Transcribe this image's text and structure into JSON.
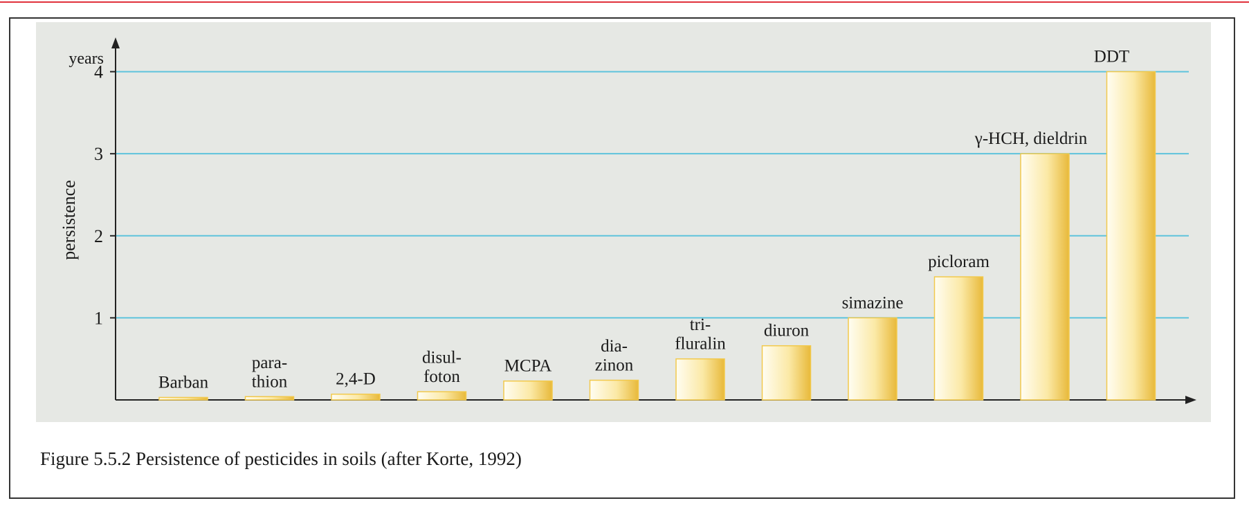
{
  "chart_data": {
    "type": "bar",
    "caption": "Figure 5.5.2 Persistence of pesticides in soils (after Korte, 1992)",
    "y_label": "persistence",
    "y_unit": "years",
    "categories": [
      "Barban",
      "para-\nthion",
      "2,4-D",
      "disul-\nfoton",
      "MCPA",
      "dia-\nzinon",
      "tri-\nfluralin",
      "diuron",
      "simazine",
      "picloram",
      "γ-HCH, dieldrin",
      "DDT"
    ],
    "values": [
      0.03,
      0.04,
      0.07,
      0.1,
      0.23,
      0.24,
      0.5,
      0.66,
      1.0,
      1.5,
      3.0,
      4.0
    ],
    "color": "#f2c94c",
    "ylim": [
      0,
      4.3
    ],
    "yticks": [
      1,
      2,
      3,
      4
    ],
    "grid": true
  }
}
